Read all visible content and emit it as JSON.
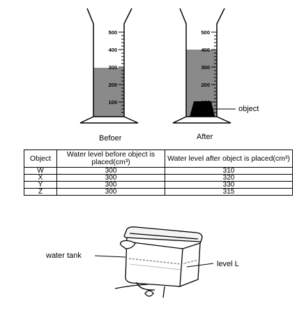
{
  "cylinders": {
    "before_label": "Befoer",
    "after_label": "After",
    "object_label": "object",
    "ticks": [
      "500",
      "400",
      "300",
      "200",
      "100"
    ]
  },
  "table": {
    "headers": {
      "object": "Object",
      "before": "Water level before object is placed(cm³)",
      "after": "Water level after object is placed(cm³)"
    },
    "rows": [
      {
        "object": "W",
        "before": "300",
        "after": "310"
      },
      {
        "object": "X",
        "before": "300",
        "after": "320"
      },
      {
        "object": "Y",
        "before": "300",
        "after": "330"
      },
      {
        "object": "Z",
        "before": "300",
        "after": "315"
      }
    ]
  },
  "tank": {
    "tank_label": "water tank",
    "level_label": "level L"
  },
  "colors": {
    "water": "#8a8a8a",
    "object": "#000000",
    "line": "#000000"
  }
}
